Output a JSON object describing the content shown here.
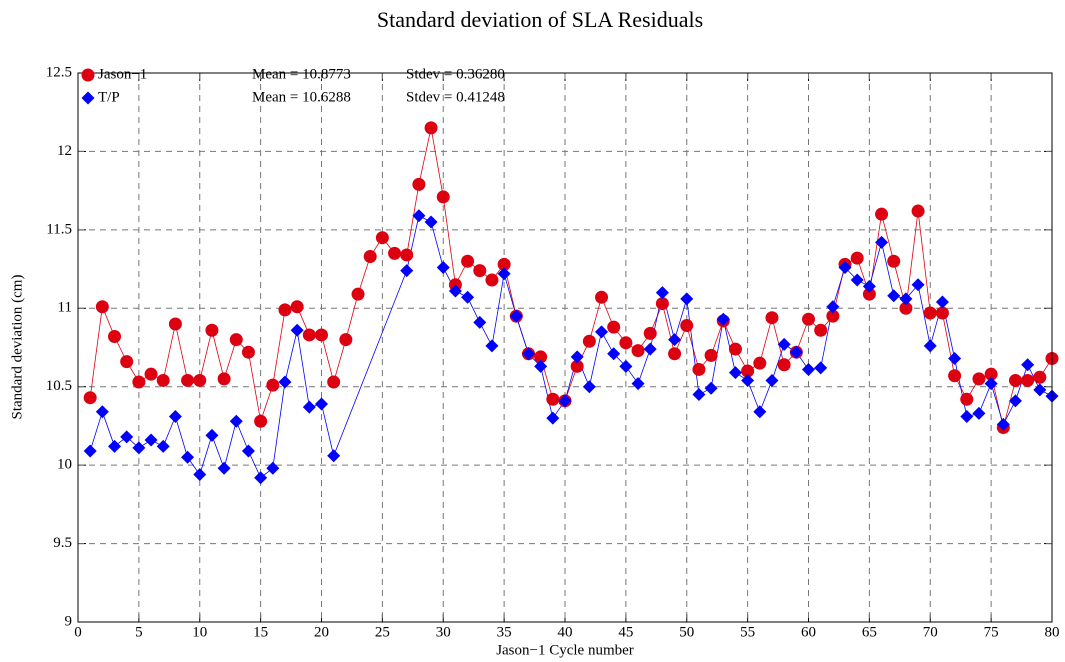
{
  "chart_data": {
    "type": "line",
    "title": "Standard deviation of SLA Residuals",
    "xlabel": "Jason−1 Cycle number",
    "ylabel": "Standard deviation (cm)",
    "xlim": [
      0,
      80
    ],
    "ylim": [
      9,
      12.5
    ],
    "xticks": [
      0,
      5,
      10,
      15,
      20,
      25,
      30,
      35,
      40,
      45,
      50,
      55,
      60,
      65,
      70,
      75,
      80
    ],
    "yticks": [
      9,
      9.5,
      10,
      10.5,
      11,
      11.5,
      12,
      12.5
    ],
    "grid": true,
    "legend": "upper left",
    "annotations": [
      "Mean = 10.8773",
      "Stdev = 0.36280",
      "Mean = 10.6288",
      "Stdev = 0.41248"
    ],
    "series": [
      {
        "name": "Jason−1",
        "color": "#dd0011",
        "marker": "circle",
        "x": [
          1,
          2,
          3,
          4,
          5,
          6,
          7,
          8,
          9,
          10,
          11,
          12,
          13,
          14,
          15,
          16,
          17,
          18,
          19,
          20,
          21,
          22,
          23,
          24,
          25,
          26,
          27,
          28,
          29,
          30,
          31,
          32,
          33,
          34,
          35,
          36,
          37,
          38,
          39,
          40,
          41,
          42,
          43,
          44,
          45,
          46,
          47,
          48,
          49,
          50,
          51,
          52,
          53,
          54,
          55,
          56,
          57,
          58,
          59,
          60,
          61,
          62,
          63,
          64,
          65,
          66,
          67,
          68,
          69,
          70,
          71,
          72,
          73,
          74,
          75,
          76,
          77,
          78,
          79,
          80
        ],
        "values": [
          10.43,
          11.01,
          10.82,
          10.66,
          10.53,
          10.58,
          10.54,
          10.9,
          10.54,
          10.54,
          10.86,
          10.55,
          10.8,
          10.72,
          10.28,
          10.51,
          10.99,
          11.01,
          10.83,
          10.83,
          10.53,
          10.8,
          11.09,
          11.33,
          11.45,
          11.35,
          11.34,
          11.79,
          12.15,
          11.71,
          11.15,
          11.3,
          11.24,
          11.18,
          11.28,
          10.95,
          10.71,
          10.69,
          10.42,
          10.41,
          10.63,
          10.79,
          11.07,
          10.88,
          10.78,
          10.73,
          10.84,
          11.03,
          10.71,
          10.89,
          10.61,
          10.7,
          10.92,
          10.74,
          10.6,
          10.65,
          10.94,
          10.64,
          10.72,
          10.93,
          10.86,
          10.95,
          11.28,
          11.32,
          11.09,
          11.6,
          11.3,
          11.0,
          11.62,
          10.97,
          10.97,
          10.57,
          10.42,
          10.55,
          10.58,
          10.24,
          10.54,
          10.54,
          10.56,
          10.68
        ]
      },
      {
        "name": "T/P",
        "color": "#0000ff",
        "marker": "diamond",
        "x": [
          1,
          2,
          3,
          4,
          5,
          6,
          7,
          8,
          9,
          10,
          11,
          12,
          13,
          14,
          15,
          16,
          17,
          18,
          19,
          20,
          21,
          27,
          28,
          29,
          30,
          31,
          32,
          33,
          34,
          35,
          36,
          37,
          38,
          39,
          40,
          41,
          42,
          43,
          44,
          45,
          46,
          47,
          48,
          49,
          50,
          51,
          52,
          53,
          54,
          55,
          56,
          57,
          58,
          59,
          60,
          61,
          62,
          63,
          64,
          65,
          66,
          67,
          68,
          69,
          70,
          71,
          72,
          73,
          74,
          75,
          76,
          77,
          78,
          79,
          80
        ],
        "values": [
          10.09,
          10.34,
          10.12,
          10.18,
          10.11,
          10.16,
          10.12,
          10.31,
          10.05,
          9.94,
          10.19,
          9.98,
          10.28,
          10.09,
          9.92,
          9.98,
          10.53,
          10.86,
          10.37,
          10.39,
          10.06,
          11.24,
          11.59,
          11.55,
          11.26,
          11.11,
          11.07,
          10.91,
          10.76,
          11.22,
          10.95,
          10.71,
          10.63,
          10.3,
          10.41,
          10.69,
          10.5,
          10.85,
          10.71,
          10.63,
          10.52,
          10.74,
          11.1,
          10.8,
          11.06,
          10.45,
          10.49,
          10.93,
          10.59,
          10.54,
          10.34,
          10.54,
          10.77,
          10.72,
          10.61,
          10.62,
          11.01,
          11.26,
          11.18,
          11.14,
          11.42,
          11.08,
          11.06,
          11.15,
          10.76,
          11.04,
          10.68,
          10.31,
          10.33,
          10.52,
          10.26,
          10.41,
          10.64,
          10.48,
          10.44
        ]
      }
    ]
  }
}
